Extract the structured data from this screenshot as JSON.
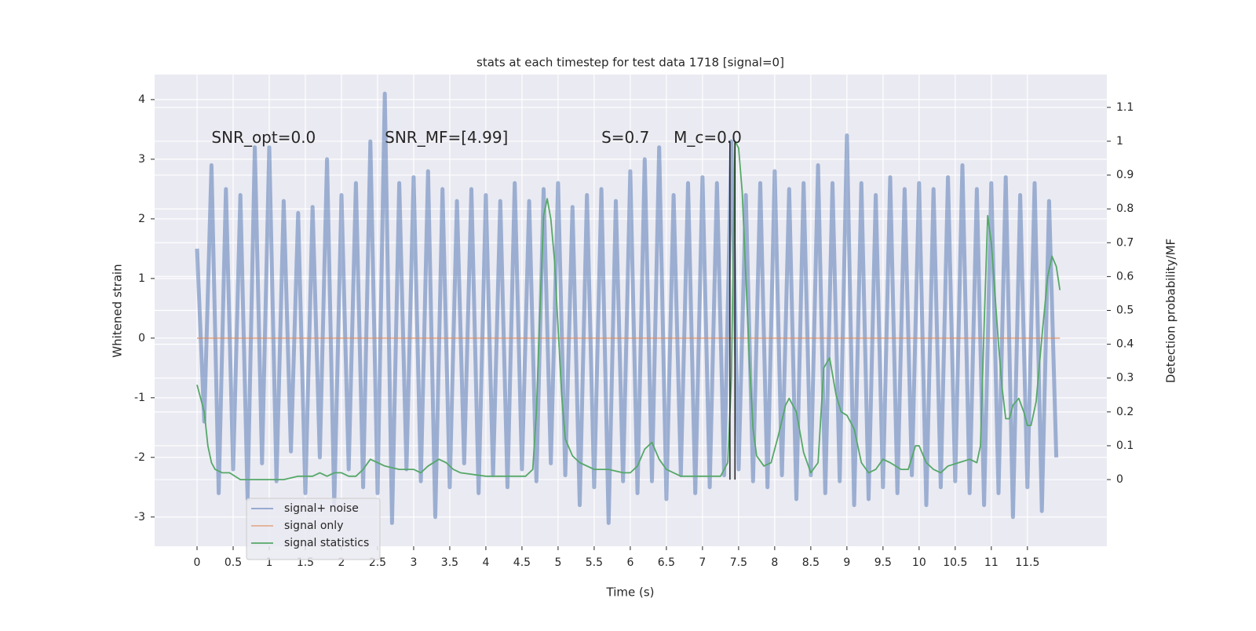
{
  "chart_data": {
    "type": "line",
    "title": "stats at each timestep for test data 1718 [signal=0]",
    "xlabel": "Time (s)",
    "ylabel": "Whitened strain",
    "y2label": "Detection probability/MF",
    "xlim": [
      -0.587,
      12.6
    ],
    "ylim": [
      -3.49,
      4.42
    ],
    "y2lim": [
      -0.197,
      1.197
    ],
    "xticks": [
      0,
      0.5,
      1,
      1.5,
      2,
      2.5,
      3,
      3.5,
      4,
      4.5,
      5,
      5.5,
      6,
      6.5,
      7,
      7.5,
      8,
      8.5,
      9,
      9.5,
      10,
      10.5,
      11,
      11.5
    ],
    "yticks": [
      -3,
      -2,
      -1,
      0,
      1,
      2,
      3,
      4
    ],
    "y2ticks": [
      0,
      0.1,
      0.2,
      0.3,
      0.4,
      0.5,
      0.6,
      0.7,
      0.8,
      0.9,
      1,
      1.1
    ],
    "grid": true,
    "legend": "lower left",
    "annotations": [
      {
        "text": "SNR_opt=0.0",
        "x": 0.2,
        "y": 3.35
      },
      {
        "text": "SNR_MF=[4.99]",
        "x": 2.6,
        "y": 3.35
      },
      {
        "text": "S=0.7",
        "x": 5.6,
        "y": 3.35
      },
      {
        "text": "M_c=0.0",
        "x": 6.6,
        "y": 3.35
      }
    ],
    "vlines": {
      "x": [
        7.38,
        7.45
      ],
      "ymin": 0,
      "ymax": 1,
      "axis": "y2",
      "color": "#222222"
    },
    "series": [
      {
        "name": "signal+ noise",
        "color": "#4c72b0",
        "axis": "y",
        "x": [
          0,
          0.1,
          0.2,
          0.3,
          0.4,
          0.5,
          0.6,
          0.7,
          0.8,
          0.9,
          1,
          1.1,
          1.2,
          1.3,
          1.4,
          1.5,
          1.6,
          1.7,
          1.8,
          1.9,
          2,
          2.1,
          2.2,
          2.3,
          2.4,
          2.5,
          2.6,
          2.7,
          2.8,
          2.9,
          3,
          3.1,
          3.2,
          3.3,
          3.4,
          3.5,
          3.6,
          3.7,
          3.8,
          3.9,
          4,
          4.1,
          4.2,
          4.3,
          4.4,
          4.5,
          4.6,
          4.7,
          4.8,
          4.9,
          5,
          5.1,
          5.2,
          5.3,
          5.4,
          5.5,
          5.6,
          5.7,
          5.8,
          5.9,
          6,
          6.1,
          6.2,
          6.3,
          6.4,
          6.5,
          6.6,
          6.7,
          6.8,
          6.9,
          7,
          7.1,
          7.2,
          7.3,
          7.4,
          7.5,
          7.6,
          7.7,
          7.8,
          7.9,
          8,
          8.1,
          8.2,
          8.3,
          8.4,
          8.5,
          8.6,
          8.7,
          8.8,
          8.9,
          9,
          9.1,
          9.2,
          9.3,
          9.4,
          9.5,
          9.6,
          9.7,
          9.8,
          9.9,
          10,
          10.1,
          10.2,
          10.3,
          10.4,
          10.5,
          10.6,
          10.7,
          10.8,
          10.9,
          11,
          11.1,
          11.2,
          11.3,
          11.4,
          11.5,
          11.6,
          11.7,
          11.8,
          11.9
        ],
        "values": [
          1.5,
          -1.4,
          2.9,
          -2.6,
          2.5,
          -2.2,
          2.4,
          -2.7,
          3.2,
          -2.1,
          3.2,
          -2.4,
          2.3,
          -1.9,
          2.1,
          -2.6,
          2.2,
          -2.0,
          3.0,
          -2.8,
          2.4,
          -2.2,
          2.6,
          -2.5,
          3.3,
          -2.6,
          4.1,
          -3.1,
          2.6,
          -2.2,
          2.7,
          -2.4,
          2.8,
          -3.0,
          2.5,
          -2.5,
          2.3,
          -2.1,
          2.5,
          -2.6,
          2.4,
          -2.3,
          2.3,
          -2.5,
          2.6,
          -2.2,
          2.3,
          -2.4,
          2.5,
          -2.1,
          2.6,
          -2.3,
          2.2,
          -2.8,
          2.4,
          -2.5,
          2.5,
          -3.1,
          2.3,
          -2.4,
          2.8,
          -2.6,
          3.0,
          -2.4,
          3.2,
          -2.7,
          2.4,
          -2.3,
          2.6,
          -2.6,
          2.7,
          -2.5,
          2.6,
          -2.3,
          3.3,
          -2.2,
          2.4,
          -2.4,
          2.6,
          -2.5,
          2.8,
          -2.3,
          2.5,
          -2.7,
          2.6,
          -2.3,
          2.9,
          -2.6,
          2.6,
          -2.4,
          3.4,
          -2.8,
          2.6,
          -2.7,
          2.4,
          -2.5,
          2.7,
          -2.6,
          2.5,
          -2.3,
          2.6,
          -2.8,
          2.5,
          -2.5,
          2.7,
          -2.4,
          2.9,
          -2.6,
          2.5,
          -2.8,
          2.6,
          -2.6,
          2.7,
          -3.0,
          2.4,
          -2.5,
          2.6,
          -2.9,
          2.3,
          -2.0
        ]
      },
      {
        "name": "signal only",
        "color": "#dd8452",
        "axis": "y",
        "x": [
          0,
          11.95
        ],
        "values": [
          0,
          0
        ]
      },
      {
        "name": "signal statistics",
        "color": "#55a868",
        "axis": "y2",
        "x": [
          0,
          0.1,
          0.15,
          0.2,
          0.25,
          0.35,
          0.45,
          0.6,
          0.8,
          1.0,
          1.2,
          1.4,
          1.6,
          1.7,
          1.8,
          1.9,
          2.0,
          2.1,
          2.2,
          2.3,
          2.4,
          2.5,
          2.6,
          2.8,
          2.9,
          3.0,
          3.1,
          3.2,
          3.35,
          3.45,
          3.55,
          3.65,
          4.0,
          4.2,
          4.4,
          4.55,
          4.65,
          4.7,
          4.75,
          4.8,
          4.85,
          4.9,
          4.95,
          5.0,
          5.05,
          5.1,
          5.2,
          5.3,
          5.5,
          5.7,
          5.9,
          6.0,
          6.1,
          6.2,
          6.3,
          6.4,
          6.5,
          6.7,
          6.9,
          7.1,
          7.25,
          7.35,
          7.4,
          7.45,
          7.5,
          7.55,
          7.6,
          7.65,
          7.7,
          7.75,
          7.85,
          7.95,
          8.05,
          8.15,
          8.2,
          8.3,
          8.4,
          8.5,
          8.6,
          8.68,
          8.76,
          8.85,
          8.92,
          9.0,
          9.1,
          9.2,
          9.3,
          9.4,
          9.5,
          9.6,
          9.75,
          9.85,
          9.95,
          10.0,
          10.1,
          10.2,
          10.3,
          10.4,
          10.55,
          10.7,
          10.8,
          10.85,
          10.9,
          10.95,
          11.0,
          11.1,
          11.15,
          11.2,
          11.25,
          11.3,
          11.38,
          11.45,
          11.5,
          11.55,
          11.62,
          11.7,
          11.78,
          11.84,
          11.9,
          11.95
        ],
        "values": [
          0.28,
          0.2,
          0.1,
          0.05,
          0.03,
          0.02,
          0.02,
          0.0,
          0.0,
          0.0,
          0.0,
          0.01,
          0.01,
          0.02,
          0.01,
          0.02,
          0.02,
          0.01,
          0.01,
          0.03,
          0.06,
          0.05,
          0.04,
          0.03,
          0.03,
          0.03,
          0.02,
          0.04,
          0.06,
          0.05,
          0.03,
          0.02,
          0.01,
          0.01,
          0.01,
          0.01,
          0.03,
          0.2,
          0.5,
          0.78,
          0.83,
          0.77,
          0.65,
          0.45,
          0.25,
          0.12,
          0.07,
          0.05,
          0.03,
          0.03,
          0.02,
          0.02,
          0.04,
          0.09,
          0.11,
          0.06,
          0.03,
          0.01,
          0.01,
          0.01,
          0.01,
          0.05,
          0.3,
          1.0,
          0.98,
          0.85,
          0.6,
          0.35,
          0.15,
          0.07,
          0.04,
          0.05,
          0.13,
          0.22,
          0.24,
          0.2,
          0.08,
          0.02,
          0.05,
          0.33,
          0.36,
          0.25,
          0.2,
          0.19,
          0.15,
          0.05,
          0.02,
          0.03,
          0.06,
          0.05,
          0.03,
          0.03,
          0.1,
          0.1,
          0.05,
          0.03,
          0.02,
          0.04,
          0.05,
          0.06,
          0.05,
          0.1,
          0.45,
          0.78,
          0.7,
          0.4,
          0.27,
          0.18,
          0.18,
          0.22,
          0.24,
          0.2,
          0.16,
          0.16,
          0.23,
          0.42,
          0.6,
          0.66,
          0.63,
          0.56
        ]
      }
    ]
  }
}
